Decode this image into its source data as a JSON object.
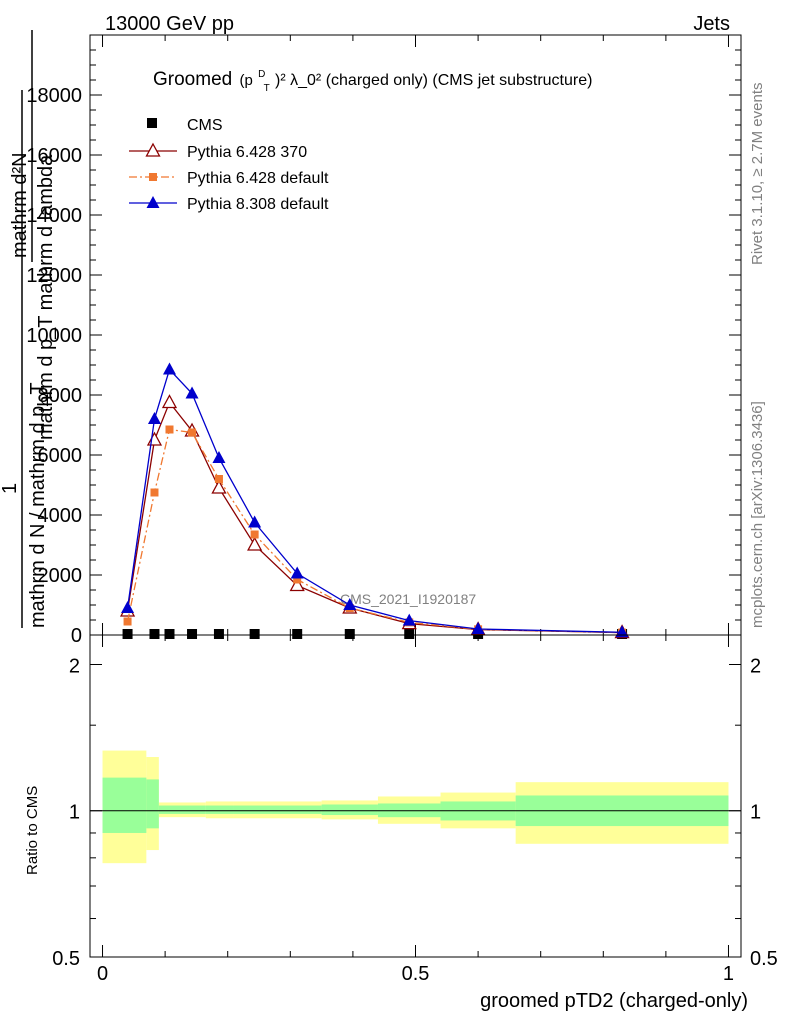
{
  "header": {
    "left": "13000 GeV pp",
    "right": "Jets"
  },
  "side_labels": {
    "rivet": "Rivet 3.1.10, ≥ 2.7M events",
    "mcplots": "mcplots.cern.ch [arXiv:1306.3436]"
  },
  "watermark": "CMS_2021_I1920187",
  "chart_data": [
    {
      "type": "line",
      "title": {
        "prefix": "Groomed",
        "math": "(p",
        "sup_d": "D",
        "sub_t": "T",
        "tail": ")² λ_0²  (charged only) (CMS jet substructure)"
      },
      "ylabel": {
        "numerator_one": "1",
        "frac1_num": "mathrm d²N",
        "frac1_den": "mathrm d p_T mathrm d lambda",
        "frac2_den": "mathrm d N / mathrm d p_T"
      },
      "ylim": [
        0,
        20000
      ],
      "xlim": [
        -0.02,
        1.02
      ],
      "yticks": [
        0,
        2000,
        4000,
        6000,
        8000,
        10000,
        12000,
        14000,
        16000,
        18000
      ],
      "ytick_labels": [
        "0",
        "2000",
        "4000",
        "6000",
        "8000",
        "10000",
        "12000",
        "14000",
        "16000",
        "18000"
      ],
      "legend_position": "top-left",
      "series": [
        {
          "name": "CMS",
          "color": "#000000",
          "marker": "square",
          "x": [
            0.04,
            0.083,
            0.107,
            0.143,
            0.186,
            0.243,
            0.311,
            0.395,
            0.49,
            0.6,
            0.83
          ],
          "y": [
            0,
            0,
            0,
            0,
            0,
            0,
            0,
            0,
            0,
            0,
            0
          ]
        },
        {
          "name": "Pythia 6.428 370",
          "color": "#8b0000",
          "marker": "open-triangle",
          "x": [
            0.04,
            0.083,
            0.107,
            0.143,
            0.186,
            0.243,
            0.311,
            0.395,
            0.49,
            0.6,
            0.83
          ],
          "y": [
            800,
            6500,
            7750,
            6800,
            4900,
            3000,
            1650,
            900,
            380,
            180,
            80
          ]
        },
        {
          "name": "Pythia 6.428 default",
          "color": "#f07830",
          "marker": "small-square",
          "dash": "dashdot",
          "x": [
            0.04,
            0.083,
            0.107,
            0.143,
            0.186,
            0.243,
            0.311,
            0.395,
            0.49,
            0.6,
            0.83
          ],
          "y": [
            450,
            4750,
            6850,
            6750,
            5200,
            3350,
            1850,
            900,
            420,
            190,
            80
          ]
        },
        {
          "name": "Pythia 8.308 default",
          "color": "#0000cc",
          "marker": "filled-triangle",
          "x": [
            0.04,
            0.083,
            0.107,
            0.143,
            0.186,
            0.243,
            0.311,
            0.395,
            0.49,
            0.6,
            0.83
          ],
          "y": [
            900,
            7200,
            8850,
            8050,
            5900,
            3750,
            2050,
            1000,
            480,
            200,
            90
          ]
        }
      ]
    },
    {
      "type": "area",
      "ylabel": "Ratio to CMS",
      "xlabel": "groomed pTD2 (charged-only)",
      "xlim": [
        -0.02,
        1.02
      ],
      "ylim": [
        0.5,
        2.0
      ],
      "yticks": [
        0.5,
        1,
        2
      ],
      "ytick_labels": [
        "0.5",
        "1",
        "2"
      ],
      "xticks": [
        0,
        0.5,
        1
      ],
      "xtick_labels": [
        "0",
        "0.5",
        "1"
      ],
      "band_colors": {
        "inner": "#99ff99",
        "outer": "#ffff99"
      },
      "bins": [
        {
          "x0": 0.0,
          "x1": 0.07,
          "in_lo": 0.9,
          "in_hi": 1.17,
          "out_lo": 0.78,
          "out_hi": 1.33
        },
        {
          "x0": 0.07,
          "x1": 0.09,
          "in_lo": 0.92,
          "in_hi": 1.16,
          "out_lo": 0.83,
          "out_hi": 1.29
        },
        {
          "x0": 0.09,
          "x1": 0.165,
          "in_lo": 0.985,
          "in_hi": 1.025,
          "out_lo": 0.97,
          "out_hi": 1.04
        },
        {
          "x0": 0.165,
          "x1": 0.21,
          "in_lo": 0.985,
          "in_hi": 1.025,
          "out_lo": 0.965,
          "out_hi": 1.045
        },
        {
          "x0": 0.21,
          "x1": 0.35,
          "in_lo": 0.985,
          "in_hi": 1.025,
          "out_lo": 0.965,
          "out_hi": 1.045
        },
        {
          "x0": 0.35,
          "x1": 0.44,
          "in_lo": 0.98,
          "in_hi": 1.03,
          "out_lo": 0.96,
          "out_hi": 1.05
        },
        {
          "x0": 0.44,
          "x1": 0.54,
          "in_lo": 0.97,
          "in_hi": 1.035,
          "out_lo": 0.94,
          "out_hi": 1.07
        },
        {
          "x0": 0.54,
          "x1": 0.66,
          "in_lo": 0.955,
          "in_hi": 1.045,
          "out_lo": 0.92,
          "out_hi": 1.09
        },
        {
          "x0": 0.66,
          "x1": 1.0,
          "in_lo": 0.93,
          "in_hi": 1.075,
          "out_lo": 0.855,
          "out_hi": 1.145
        }
      ]
    }
  ]
}
